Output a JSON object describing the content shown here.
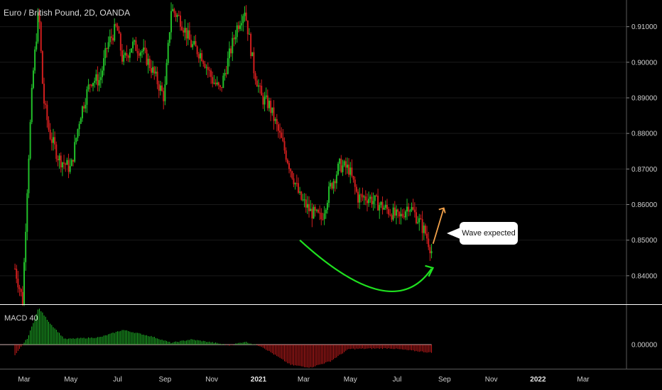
{
  "header": {
    "title": "Euro / British Pound, 2D, OANDA"
  },
  "indicator": {
    "label": "MACD 40"
  },
  "annotation": {
    "text": "Wave expected"
  },
  "colors": {
    "up": "#22c02a",
    "down": "#d01e1e",
    "curve": "#1fe01f",
    "arrow": "#f2a14a",
    "grid": "#1a1a1a",
    "separator": "#ffffff"
  },
  "chart_data": {
    "type": "candlestick",
    "title": "Euro / British Pound, 2D, OANDA",
    "xlabel": "",
    "ylabel": "",
    "ylim": [
      0.832,
      0.9175
    ],
    "y_ticks": [
      "0.84000",
      "0.85000",
      "0.86000",
      "0.87000",
      "0.88000",
      "0.89000",
      "0.90000",
      "0.91000"
    ],
    "x_ticks": [
      "Mar",
      "May",
      "Jul",
      "Sep",
      "Nov",
      "2021",
      "Mar",
      "May",
      "Jul",
      "Sep",
      "Nov",
      "2022",
      "Mar"
    ],
    "price_path": [
      [
        "2020-02-18",
        0.842
      ],
      [
        "2020-02-28",
        0.833
      ],
      [
        "2020-03-06",
        0.87
      ],
      [
        "2020-03-12",
        0.895
      ],
      [
        "2020-03-20",
        0.915
      ],
      [
        "2020-03-26",
        0.89
      ],
      [
        "2020-04-03",
        0.88
      ],
      [
        "2020-04-15",
        0.873
      ],
      [
        "2020-05-01",
        0.87
      ],
      [
        "2020-05-13",
        0.885
      ],
      [
        "2020-05-27",
        0.895
      ],
      [
        "2020-06-08",
        0.895
      ],
      [
        "2020-06-18",
        0.905
      ],
      [
        "2020-06-30",
        0.91
      ],
      [
        "2020-07-08",
        0.9
      ],
      [
        "2020-07-20",
        0.905
      ],
      [
        "2020-08-03",
        0.903
      ],
      [
        "2020-08-15",
        0.898
      ],
      [
        "2020-08-31",
        0.89
      ],
      [
        "2020-09-09",
        0.915
      ],
      [
        "2020-09-21",
        0.912
      ],
      [
        "2020-10-05",
        0.905
      ],
      [
        "2020-10-19",
        0.902
      ],
      [
        "2020-11-02",
        0.895
      ],
      [
        "2020-11-12",
        0.892
      ],
      [
        "2020-11-24",
        0.902
      ],
      [
        "2020-12-04",
        0.91
      ],
      [
        "2020-12-14",
        0.915
      ],
      [
        "2020-12-26",
        0.898
      ],
      [
        "2021-01-05",
        0.89
      ],
      [
        "2021-01-15",
        0.888
      ],
      [
        "2021-01-31",
        0.878
      ],
      [
        "2021-02-12",
        0.87
      ],
      [
        "2021-02-24",
        0.862
      ],
      [
        "2021-03-10",
        0.858
      ],
      [
        "2021-03-24",
        0.856
      ],
      [
        "2021-04-05",
        0.865
      ],
      [
        "2021-04-17",
        0.871
      ],
      [
        "2021-04-29",
        0.87
      ],
      [
        "2021-05-11",
        0.862
      ],
      [
        "2021-05-25",
        0.862
      ],
      [
        "2021-06-08",
        0.86
      ],
      [
        "2021-06-22",
        0.858
      ],
      [
        "2021-07-04",
        0.856
      ],
      [
        "2021-07-16",
        0.86
      ],
      [
        "2021-07-28",
        0.856
      ],
      [
        "2021-08-07",
        0.852
      ],
      [
        "2021-08-15",
        0.847
      ]
    ],
    "macd_path": [
      [
        "2020-02-18",
        -0.3
      ],
      [
        "2020-03-06",
        0.2
      ],
      [
        "2020-03-20",
        1.0
      ],
      [
        "2020-04-03",
        0.6
      ],
      [
        "2020-04-23",
        0.15
      ],
      [
        "2020-06-08",
        0.2
      ],
      [
        "2020-07-08",
        0.4
      ],
      [
        "2020-08-15",
        0.22
      ],
      [
        "2020-09-09",
        0.05
      ],
      [
        "2020-10-05",
        0.14
      ],
      [
        "2020-11-02",
        0.06
      ],
      [
        "2020-11-24",
        -0.02
      ],
      [
        "2020-12-14",
        0.08
      ],
      [
        "2021-01-05",
        -0.05
      ],
      [
        "2021-02-12",
        -0.55
      ],
      [
        "2021-03-10",
        -0.62
      ],
      [
        "2021-04-05",
        -0.45
      ],
      [
        "2021-04-29",
        -0.12
      ],
      [
        "2021-06-22",
        -0.1
      ],
      [
        "2021-08-15",
        -0.22
      ]
    ],
    "forecast": {
      "curve": [
        [
          "2021-02-24",
          0.85
        ],
        [
          "2021-06-08",
          0.836
        ],
        [
          "2021-08-15",
          0.842
        ]
      ],
      "arrow": [
        [
          "2021-08-17",
          0.849
        ],
        [
          "2021-08-31",
          0.859
        ]
      ]
    }
  }
}
